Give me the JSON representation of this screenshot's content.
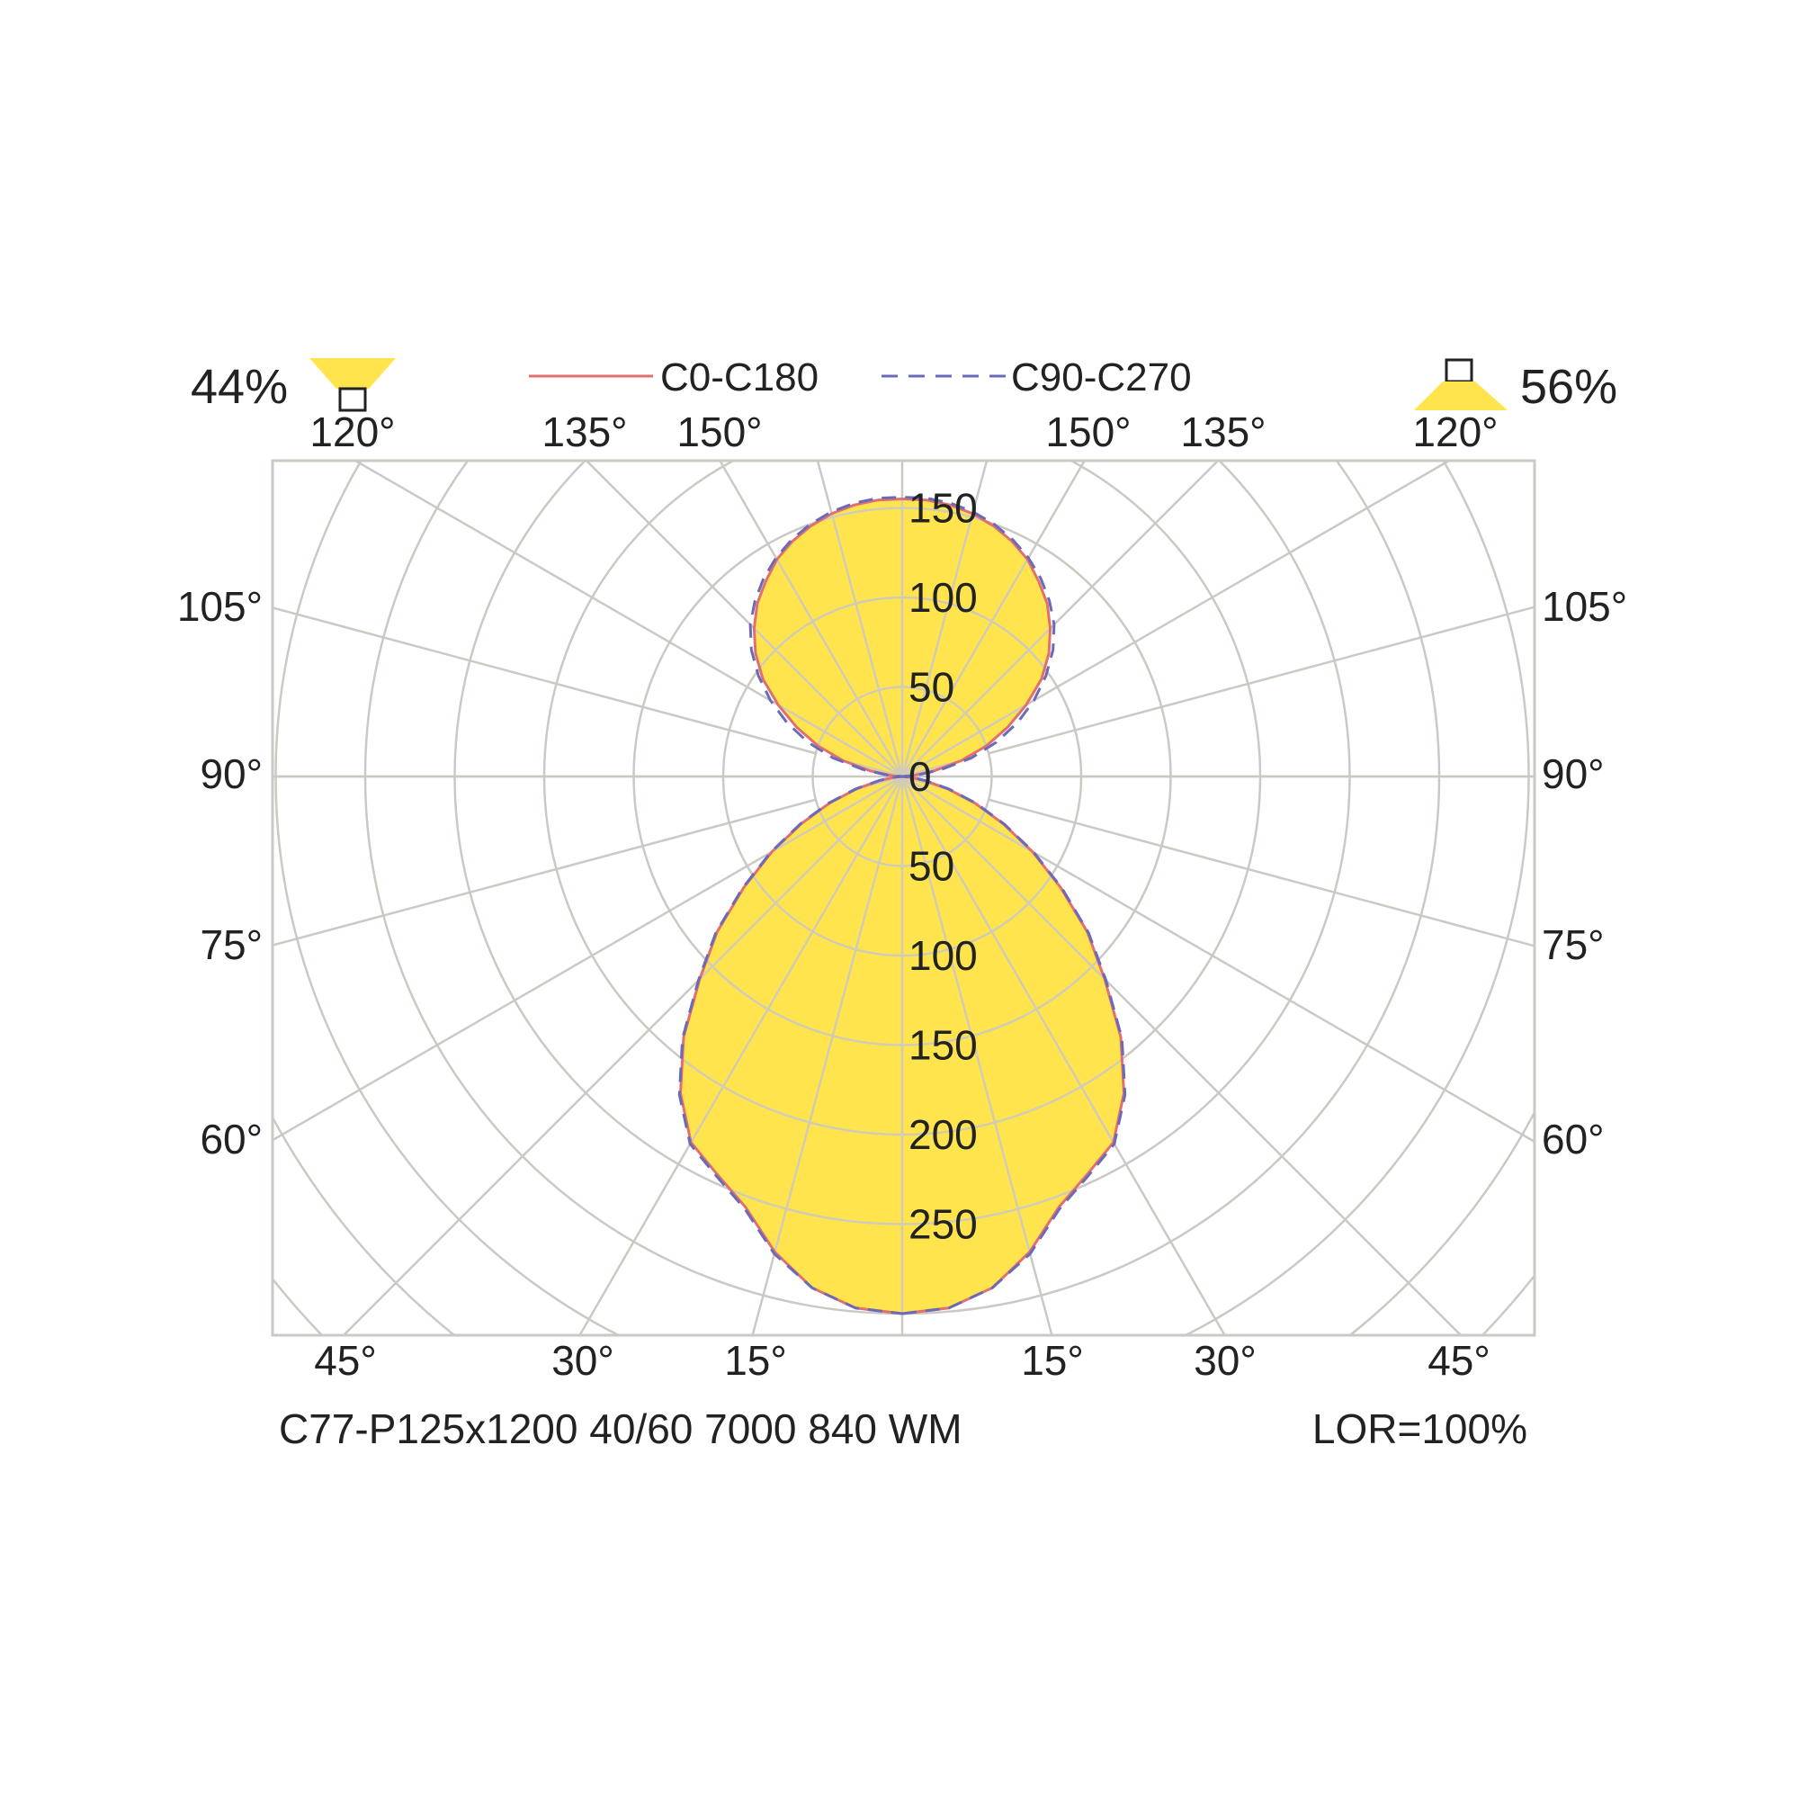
{
  "chart_data": {
    "type": "polar",
    "units": "",
    "lor": "LOR=100%",
    "product": "C77-P125x1200 40/60 7000 840 WM",
    "downward_percent": "56%",
    "upward_percent": "44%",
    "legend": [
      {
        "name": "C0-C180",
        "color": "#e07070",
        "style": "solid"
      },
      {
        "name": "C90-C270",
        "color": "#6a6ab8",
        "style": "dashed"
      }
    ],
    "radial_ticks": [
      0,
      50,
      100,
      150,
      200,
      250
    ],
    "upper_radial_ticks": [
      0,
      50,
      100,
      150
    ],
    "angle_labels": {
      "bottom": [
        "45°",
        "30°",
        "15°",
        "15°",
        "30°",
        "45°"
      ],
      "sides": [
        "60°",
        "75°",
        "90°",
        "105°"
      ],
      "top": [
        "120°",
        "135°",
        "150°",
        "150°",
        "135°",
        "120°"
      ]
    },
    "fill_color": "#ffe44d",
    "series": [
      {
        "name": "C0-C180",
        "angles_deg": [
          0,
          5,
          10,
          15,
          20,
          25,
          30,
          35,
          40,
          45,
          50,
          55,
          60,
          65,
          70,
          75,
          80,
          85,
          90,
          95,
          100,
          105,
          110,
          115,
          120,
          125,
          130,
          135,
          140,
          145,
          150,
          155,
          160,
          165,
          170,
          175,
          180
        ],
        "values": [
          300,
          298,
          290,
          275,
          256,
          245,
          236,
          216,
          190,
          160,
          135,
          108,
          84,
          62,
          43,
          26,
          12,
          4,
          0,
          6,
          18,
          34,
          50,
          65,
          80,
          95,
          107,
          117,
          126,
          133,
          140,
          145,
          149,
          152,
          154,
          155,
          155
        ]
      },
      {
        "name": "C90-C270",
        "angles_deg": [
          0,
          5,
          10,
          15,
          20,
          25,
          30,
          35,
          40,
          45,
          50,
          55,
          60,
          65,
          70,
          75,
          80,
          85,
          90,
          95,
          100,
          105,
          110,
          115,
          120,
          125,
          130,
          135,
          140,
          145,
          150,
          155,
          160,
          165,
          170,
          175,
          180
        ],
        "values": [
          300,
          298,
          290,
          276,
          257,
          246,
          237,
          217,
          191,
          161,
          136,
          109,
          85,
          63,
          44,
          27,
          13,
          5,
          0,
          8,
          22,
          40,
          56,
          71,
          85,
          98,
          110,
          120,
          128,
          135,
          141,
          146,
          150,
          153,
          155,
          156,
          156
        ]
      }
    ]
  }
}
